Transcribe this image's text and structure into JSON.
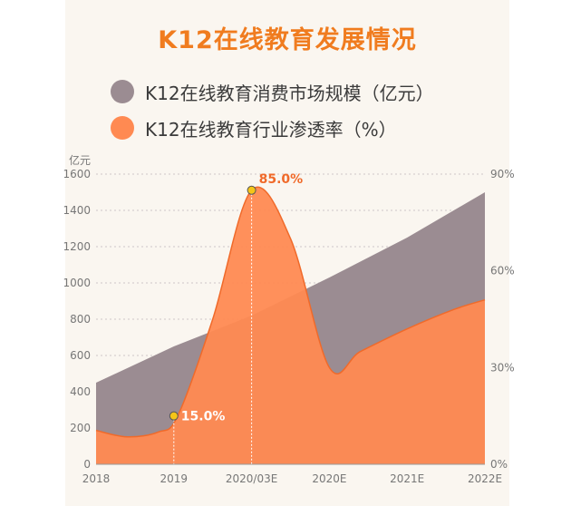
{
  "chart_data": {
    "type": "area",
    "title": "K12在线教育发展情况",
    "categories": [
      "2018",
      "2019",
      "2020/03E",
      "2020E",
      "2021E",
      "2022E"
    ],
    "y_left": {
      "unit": "亿元",
      "ylim": [
        0,
        1600
      ],
      "ticks": [
        "0",
        "200",
        "400",
        "600",
        "800",
        "1000",
        "1200",
        "1400",
        "1600"
      ]
    },
    "y_right": {
      "ylim": [
        0,
        90
      ],
      "ticks": [
        "0%",
        "30%",
        "60%",
        "90%"
      ]
    },
    "series": [
      {
        "name": "K12在线教育消费市场规模（亿元）",
        "axis": "left",
        "color": "#9b8c92",
        "points": [
          [
            0,
            450
          ],
          [
            1,
            650
          ],
          [
            2,
            820
          ],
          [
            3,
            1030
          ],
          [
            4,
            1250
          ],
          [
            5,
            1500
          ]
        ]
      },
      {
        "name": "K12在线教育行业渗透率（%）",
        "axis": "right",
        "color": "#ff8a52",
        "points": [
          [
            0,
            10.5
          ],
          [
            0.4,
            8.5
          ],
          [
            0.8,
            10
          ],
          [
            1.05,
            15
          ],
          [
            1.5,
            45
          ],
          [
            2,
            85
          ],
          [
            2.5,
            70
          ],
          [
            3,
            30
          ],
          [
            3.4,
            35
          ],
          [
            4,
            42
          ],
          [
            4.6,
            48
          ],
          [
            5,
            51
          ]
        ]
      }
    ],
    "annotations": [
      {
        "label": "15.0%",
        "x": 1,
        "y": 15
      },
      {
        "label": "85.0%",
        "x": 2,
        "y": 85
      }
    ],
    "grid": "horizontal dotted"
  }
}
